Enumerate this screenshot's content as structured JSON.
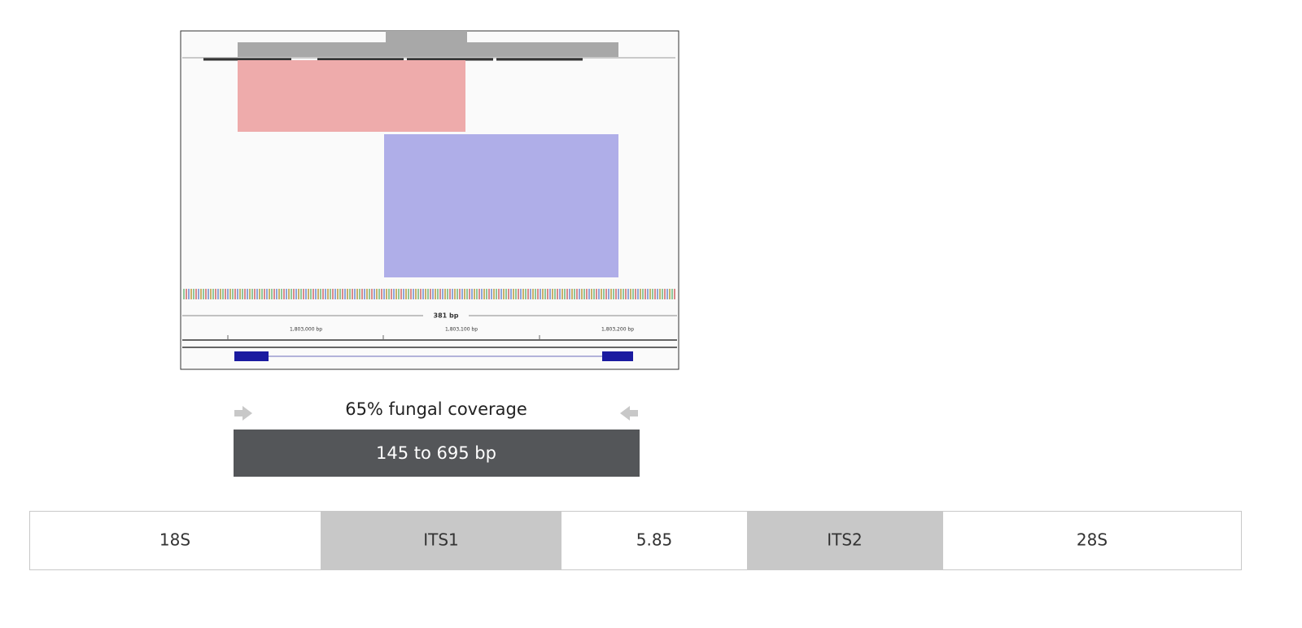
{
  "coverage_panel": {
    "length_label": "381 bp",
    "positions": [
      "1,803,000 bp",
      "1,803,100 bp",
      "1,803,200 bp"
    ]
  },
  "coverage": {
    "label": "65% fungal coverage",
    "range": "145 to 695 bp"
  },
  "regions": [
    "18S",
    "ITS1",
    "5.85",
    "ITS2",
    "28S"
  ]
}
